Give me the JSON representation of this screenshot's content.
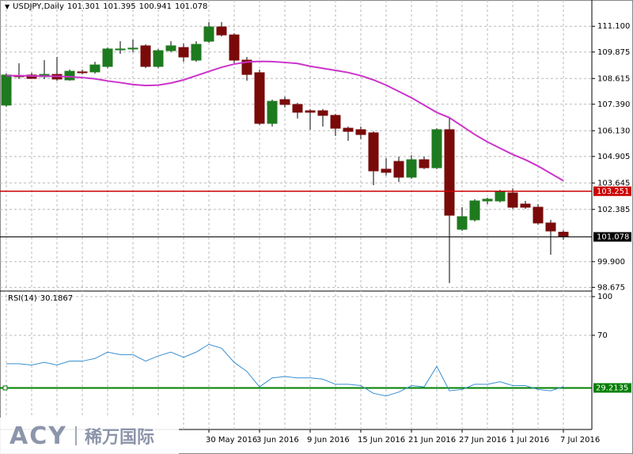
{
  "chart_data": [
    {
      "type": "candlestick",
      "title": "USDJPY,Daily",
      "last_ohlc": [
        101.301,
        101.395,
        100.941,
        101.078
      ],
      "categories": [
        null,
        null,
        null,
        null,
        null,
        null,
        null,
        null,
        null,
        null,
        null,
        null,
        null,
        null,
        null,
        null,
        "30 May 2016",
        null,
        null,
        null,
        "3 Jun 2016",
        null,
        null,
        null,
        "9 Jun 2016",
        null,
        null,
        null,
        "15 Jun 2016",
        null,
        null,
        null,
        "21 Jun 2016",
        null,
        null,
        null,
        "27 Jun 2016",
        null,
        null,
        null,
        "1 Jul 2016",
        null,
        null,
        null,
        "7 Jul 2016"
      ],
      "open": [
        107.35,
        108.74,
        108.78,
        108.7,
        108.81,
        108.55,
        108.93,
        108.93,
        109.19,
        109.98,
        110.02,
        110.17,
        109.19,
        109.94,
        110.09,
        109.49,
        110.39,
        111.07,
        110.69,
        109.49,
        108.89,
        106.48,
        107.61,
        107.38,
        107.08,
        107.08,
        106.86,
        106.25,
        106.18,
        106.03,
        104.3,
        104.67,
        103.92,
        104.75,
        104.37,
        106.18,
        101.44,
        101.89,
        102.79,
        102.79,
        103.17,
        102.64,
        102.49,
        101.74,
        101.301
      ],
      "high": [
        108.85,
        109.34,
        108.89,
        109.49,
        109.64,
        109.04,
        109.04,
        109.41,
        110.09,
        110.39,
        110.47,
        110.24,
        110.02,
        110.39,
        110.28,
        110.39,
        111.3,
        111.3,
        110.77,
        109.64,
        109.04,
        107.61,
        107.76,
        107.46,
        107.16,
        107.16,
        106.93,
        106.33,
        106.33,
        106.1,
        104.82,
        104.9,
        104.97,
        104.9,
        106.25,
        106.78,
        102.49,
        102.87,
        102.94,
        103.32,
        103.39,
        102.79,
        102.64,
        101.89,
        101.395
      ],
      "low": [
        107.27,
        108.59,
        108.59,
        108.59,
        108.51,
        108.51,
        108.81,
        108.85,
        109.11,
        109.79,
        109.87,
        109.11,
        109.11,
        109.87,
        109.41,
        109.41,
        110.32,
        110.62,
        109.34,
        108.51,
        106.4,
        106.33,
        107.23,
        106.71,
        106.18,
        106.33,
        105.88,
        105.65,
        105.73,
        103.54,
        104.0,
        103.69,
        103.84,
        104.3,
        104.3,
        98.88,
        101.36,
        101.81,
        102.64,
        102.72,
        102.41,
        102.41,
        101.66,
        100.23,
        100.941
      ],
      "close": [
        108.78,
        108.7,
        108.62,
        108.81,
        108.59,
        108.96,
        108.89,
        109.26,
        110.02,
        110.02,
        110.06,
        109.19,
        109.94,
        110.17,
        109.64,
        110.24,
        111.07,
        110.69,
        109.49,
        108.81,
        106.48,
        107.53,
        107.38,
        107.01,
        107.01,
        106.86,
        106.25,
        106.1,
        105.95,
        104.22,
        104.15,
        103.92,
        104.75,
        104.37,
        106.18,
        102.11,
        102.04,
        102.79,
        102.87,
        103.24,
        102.49,
        102.49,
        101.74,
        101.36,
        101.078
      ],
      "up_color": "#1e7a1e",
      "down_color": "#7a0a0a",
      "ma": {
        "color": "#cc33cc",
        "values": [
          108.75,
          108.75,
          108.74,
          108.73,
          108.72,
          108.7,
          108.66,
          108.6,
          108.5,
          108.42,
          108.33,
          108.28,
          108.3,
          108.4,
          108.55,
          108.75,
          108.95,
          109.15,
          109.3,
          109.4,
          109.43,
          109.42,
          109.38,
          109.33,
          109.2,
          109.1,
          109.0,
          108.9,
          108.75,
          108.55,
          108.3,
          108.0,
          107.7,
          107.35,
          107.0,
          106.75,
          106.35,
          105.95,
          105.6,
          105.3,
          105.0,
          104.75,
          104.45,
          104.1,
          103.75
        ]
      },
      "hlines": [
        {
          "value": 103.251,
          "color": "#cc0000"
        },
        {
          "value": 101.078,
          "color": "#000000"
        }
      ],
      "ylim": [
        98.5,
        112.05
      ],
      "yticks": [
        {
          "value": 111.1,
          "label": "111.100"
        },
        109.875,
        108.615,
        {
          "value": 107.39,
          "label": "107.390"
        },
        {
          "value": 106.13,
          "label": "106.130"
        },
        104.905,
        103.645,
        102.385,
        {
          "value": 99.9,
          "label": "99.900"
        },
        98.675
      ],
      "grid": true
    },
    {
      "type": "line",
      "title": "RSI(14)",
      "color": "#3a8fd0",
      "values": [
        48,
        48,
        47,
        49,
        47,
        50,
        50,
        52,
        57,
        55,
        55,
        50,
        54,
        57,
        53,
        57,
        63,
        60,
        49,
        42,
        30,
        37,
        38,
        37,
        37,
        36,
        32,
        32,
        31,
        25,
        23,
        26,
        31,
        30,
        46,
        27,
        28,
        32,
        32,
        34,
        31,
        31,
        28,
        27,
        30.1867
      ],
      "level": {
        "value": 29.2135,
        "color": "#008000"
      },
      "ylim": [
        -3,
        104.3
      ],
      "yticks": [
        70,
        100
      ],
      "grid": true
    }
  ],
  "watermark": {
    "brand": "ACY",
    "name": "稀万国际"
  }
}
